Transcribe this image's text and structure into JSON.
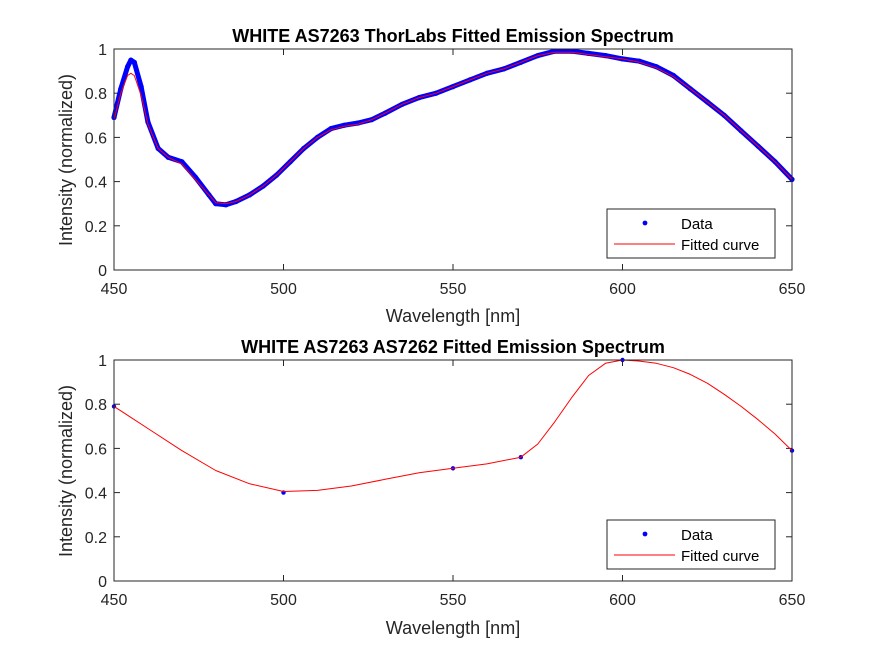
{
  "chart_data": [
    {
      "type": "line",
      "title": "WHITE AS7263 ThorLabs Fitted Emission Spectrum",
      "xlabel": "Wavelength [nm]",
      "ylabel": "Intensity (normalized)",
      "xlim": [
        450,
        650
      ],
      "ylim": [
        0,
        1
      ],
      "xticks": [
        "450",
        "500",
        "550",
        "600",
        "650"
      ],
      "yticks": [
        "0",
        "0.2",
        "0.4",
        "0.6",
        "0.8",
        "1"
      ],
      "legend": {
        "position": "bottom-right",
        "entries": [
          "Data",
          "Fitted curve"
        ]
      },
      "series": [
        {
          "name": "Data",
          "style": "markers",
          "color": "#0000ff",
          "x": [
            450,
            452,
            454,
            455,
            456,
            458,
            460,
            463,
            466,
            470,
            474,
            478,
            480,
            483,
            486,
            490,
            494,
            498,
            502,
            506,
            510,
            514,
            518,
            522,
            526,
            530,
            535,
            540,
            545,
            550,
            555,
            560,
            565,
            570,
            575,
            580,
            585,
            590,
            595,
            600,
            605,
            610,
            615,
            620,
            625,
            630,
            635,
            640,
            645,
            650
          ],
          "y": [
            0.69,
            0.82,
            0.92,
            0.95,
            0.94,
            0.83,
            0.67,
            0.55,
            0.51,
            0.49,
            0.42,
            0.34,
            0.3,
            0.295,
            0.31,
            0.34,
            0.38,
            0.43,
            0.49,
            0.55,
            0.6,
            0.64,
            0.655,
            0.665,
            0.68,
            0.71,
            0.75,
            0.78,
            0.8,
            0.83,
            0.86,
            0.89,
            0.91,
            0.94,
            0.97,
            0.99,
            0.99,
            0.98,
            0.97,
            0.955,
            0.945,
            0.92,
            0.88,
            0.82,
            0.76,
            0.7,
            0.63,
            0.56,
            0.49,
            0.41
          ]
        },
        {
          "name": "Fitted curve",
          "style": "line",
          "color": "#ff0000",
          "x": [
            450,
            452,
            454,
            455,
            456,
            458,
            460,
            463,
            466,
            470,
            474,
            478,
            480,
            483,
            486,
            490,
            494,
            498,
            502,
            506,
            510,
            514,
            518,
            522,
            526,
            530,
            535,
            540,
            545,
            550,
            555,
            560,
            565,
            570,
            575,
            580,
            585,
            590,
            595,
            600,
            605,
            610,
            615,
            620,
            625,
            630,
            635,
            640,
            645,
            650
          ],
          "y": [
            0.68,
            0.8,
            0.88,
            0.89,
            0.88,
            0.79,
            0.66,
            0.55,
            0.51,
            0.48,
            0.41,
            0.34,
            0.305,
            0.3,
            0.31,
            0.34,
            0.38,
            0.43,
            0.49,
            0.55,
            0.6,
            0.635,
            0.65,
            0.66,
            0.68,
            0.71,
            0.75,
            0.78,
            0.8,
            0.83,
            0.86,
            0.89,
            0.91,
            0.94,
            0.97,
            0.985,
            0.985,
            0.975,
            0.965,
            0.955,
            0.94,
            0.915,
            0.875,
            0.82,
            0.76,
            0.7,
            0.63,
            0.56,
            0.49,
            0.41
          ]
        }
      ]
    },
    {
      "type": "line",
      "title": "WHITE AS7263 AS7262 Fitted Emission Spectrum",
      "xlabel": "Wavelength [nm]",
      "ylabel": "Intensity (normalized)",
      "xlim": [
        450,
        650
      ],
      "ylim": [
        0,
        1
      ],
      "xticks": [
        "450",
        "500",
        "550",
        "600",
        "650"
      ],
      "yticks": [
        "0",
        "0.2",
        "0.4",
        "0.6",
        "0.8",
        "1"
      ],
      "legend": {
        "position": "bottom-right",
        "entries": [
          "Data",
          "Fitted curve"
        ]
      },
      "series": [
        {
          "name": "Data",
          "style": "markers",
          "color": "#0000ff",
          "x": [
            450,
            500,
            550,
            570,
            600,
            650
          ],
          "y": [
            0.79,
            0.4,
            0.51,
            0.56,
            1.0,
            0.59
          ]
        },
        {
          "name": "Fitted curve",
          "style": "line",
          "color": "#ff0000",
          "x": [
            450,
            460,
            470,
            480,
            490,
            500,
            510,
            520,
            530,
            540,
            550,
            560,
            570,
            575,
            580,
            585,
            590,
            595,
            600,
            605,
            610,
            615,
            620,
            625,
            630,
            635,
            640,
            645,
            650
          ],
          "y": [
            0.79,
            0.69,
            0.59,
            0.5,
            0.44,
            0.405,
            0.41,
            0.43,
            0.46,
            0.49,
            0.51,
            0.53,
            0.56,
            0.62,
            0.72,
            0.83,
            0.93,
            0.985,
            1.0,
            0.995,
            0.985,
            0.965,
            0.935,
            0.895,
            0.845,
            0.79,
            0.73,
            0.665,
            0.59
          ]
        }
      ]
    }
  ]
}
